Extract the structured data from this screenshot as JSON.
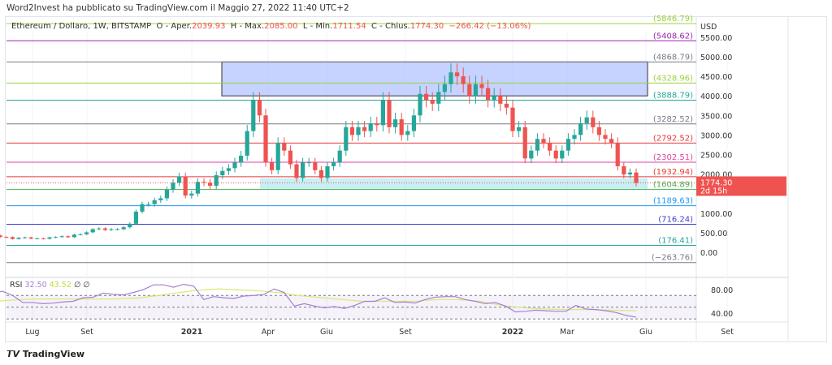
{
  "publisher_line": "Word2Invest ha pubblicato su TradingView.com il Maggio 27, 2022 11:40 UTC+2",
  "legend": {
    "symbol": "Ethereum / Dollaro, 1W, BITSTAMP",
    "o_label": "O - Aper.",
    "o": "2039.93",
    "h_label": "H - Max.",
    "h": "2085.00",
    "l_label": "L - Min.",
    "l": "1711.54",
    "c_label": "C - Chius.",
    "c": "1774.30",
    "change": "−266.42 (−13.06%)"
  },
  "currency": "USD",
  "price_ticks": [
    "5500.00",
    "5000.00",
    "4500.00",
    "4000.00",
    "3500.00",
    "3000.00",
    "2500.00",
    "2000.00",
    "1000.00",
    "500.00",
    "0.00"
  ],
  "price_tick_values": [
    5500,
    5000,
    4500,
    4000,
    3500,
    3000,
    2500,
    2000,
    1000,
    500,
    0
  ],
  "last_price": {
    "value": "1774.30",
    "countdown": "2d 15h",
    "color": "#ef5350"
  },
  "levels": [
    {
      "label": "(5846.79)",
      "value": 5846.79,
      "color": "#9bd13d"
    },
    {
      "label": "(5408.62)",
      "value": 5408.62,
      "color": "#9c27b0"
    },
    {
      "label": "(4868.79)",
      "value": 4868.79,
      "color": "#787b86"
    },
    {
      "label": "(4328.96)",
      "value": 4328.96,
      "color": "#9bd13d"
    },
    {
      "label": "(3888.79)",
      "value": 3888.79,
      "color": "#26a69a"
    },
    {
      "label": "(3282.52)",
      "value": 3282.52,
      "color": "#787b86"
    },
    {
      "label": "(2792.52)",
      "value": 2792.52,
      "color": "#e53935"
    },
    {
      "label": "(2302.51)",
      "value": 2302.51,
      "color": "#e040a0"
    },
    {
      "label": "(1932.94)",
      "value": 1932.94,
      "color": "#e53935"
    },
    {
      "label": "(1604.89)",
      "value": 1604.89,
      "color": "#4caf50"
    },
    {
      "label": "(1189.63)",
      "value": 1189.63,
      "color": "#2196f3"
    },
    {
      "label": "(716.24)",
      "value": 716.24,
      "color": "#3f3fd4"
    },
    {
      "label": "(176.41)",
      "value": 176.41,
      "color": "#26a69a"
    },
    {
      "label": "(−263.76)",
      "value": -263.76,
      "color": "#787b86"
    }
  ],
  "zones": [
    {
      "from": 4000,
      "to": 4868.79,
      "color": "#b3c3ff"
    },
    {
      "from": 1604.89,
      "to": 1932.94,
      "color": "#a5e4ec"
    }
  ],
  "colors": {
    "up": "#26a69a",
    "down": "#ef5350",
    "rsi": "#a77fd6",
    "rsi_ma": "#dce775"
  },
  "weekly_closes": [
    240,
    232,
    228,
    226,
    241,
    240,
    246,
    320,
    390,
    395,
    430,
    390,
    388,
    340,
    370,
    380,
    350,
    355,
    345,
    380,
    390,
    410,
    385,
    450,
    460,
    510,
    590,
    610,
    570,
    590,
    590,
    640,
    730,
    1040,
    1230,
    1230,
    1330,
    1380,
    1600,
    1780,
    1940,
    1450,
    1500,
    1800,
    1780,
    1700,
    1970,
    2080,
    2150,
    2300,
    2470,
    3100,
    3900,
    3500,
    2300,
    2100,
    2800,
    2600,
    2250,
    1900,
    2300,
    2300,
    2100,
    1900,
    2200,
    2300,
    2600,
    3200,
    3000,
    3200,
    3100,
    3300,
    3250,
    3900,
    3200,
    3400,
    3000,
    3100,
    3500,
    4050,
    3900,
    3800,
    4100,
    4300,
    4600,
    4500,
    4300,
    4000,
    4300,
    4200,
    3900,
    4000,
    3800,
    3700,
    3100,
    3200,
    2400,
    2600,
    2900,
    2800,
    2600,
    2400,
    2600,
    2900,
    3000,
    3300,
    3450,
    3200,
    3000,
    2900,
    2800,
    2200,
    1990,
    2040,
    1774.3
  ],
  "time_labels": [
    "Lug",
    "Set",
    "2021",
    "Apr",
    "Giu",
    "Set",
    "2022",
    "Mar",
    "Giu",
    "Set"
  ],
  "time_label_bold": [
    "2021",
    "2022"
  ],
  "rsi": {
    "label": "RSI",
    "value": "32.50",
    "ma_value": "43.52",
    "extra1": "∅",
    "extra2": "∅",
    "ticks": [
      "80.00",
      "40.00"
    ],
    "tick_values": [
      80,
      40
    ],
    "bands": [
      70,
      50,
      30
    ],
    "values": [
      55,
      54,
      54,
      56,
      58,
      73,
      74,
      77,
      70,
      58,
      58,
      56,
      57,
      59,
      60,
      66,
      67,
      74,
      72,
      71,
      75,
      80,
      88,
      88,
      84,
      89,
      86,
      63,
      68,
      66,
      65,
      69,
      70,
      72,
      81,
      75,
      52,
      56,
      52,
      49,
      51,
      48,
      53,
      60,
      60,
      66,
      58,
      59,
      57,
      63,
      67,
      68,
      68,
      63,
      60,
      56,
      58,
      52,
      42,
      43,
      45,
      44,
      43,
      43,
      53,
      47,
      46,
      44,
      41,
      36,
      33
    ],
    "ma": [
      50,
      52,
      54,
      56,
      58,
      60,
      62,
      63,
      64,
      64,
      64,
      64,
      64,
      64,
      64,
      65,
      66,
      69,
      72,
      75,
      78,
      80,
      81,
      80,
      79,
      78,
      76,
      74,
      70,
      68,
      66,
      64,
      62,
      60,
      60,
      60,
      60,
      60,
      62,
      63,
      63,
      62,
      60,
      56,
      52,
      50,
      48,
      47,
      46,
      46,
      46,
      45.5,
      45,
      44.5,
      44
    ]
  },
  "branding": "TradingView"
}
